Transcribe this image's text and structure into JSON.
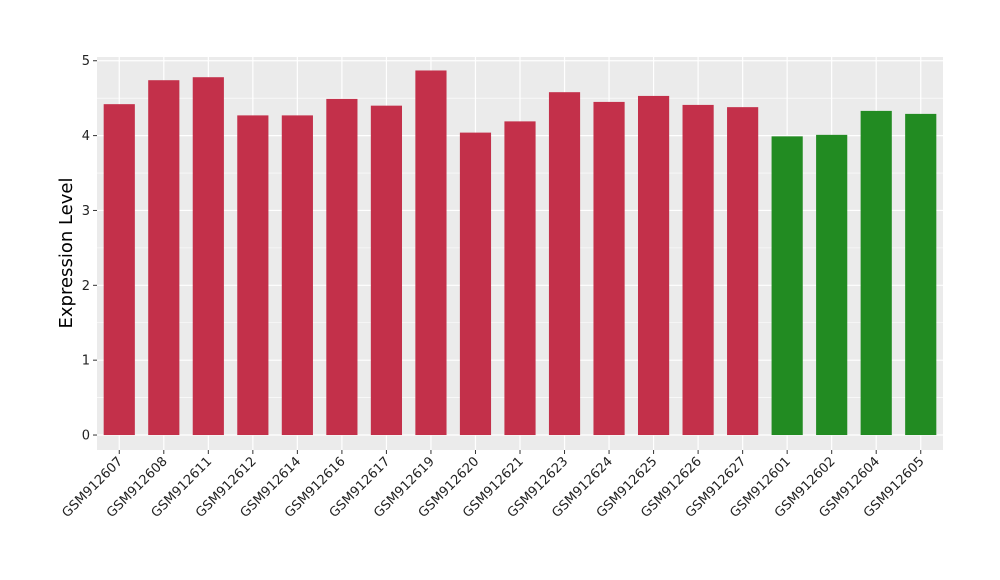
{
  "chart_data": {
    "type": "bar",
    "title": "",
    "xlabel": "",
    "ylabel": "Expression Level",
    "ylim": [
      -0.2,
      5.05
    ],
    "yticks": [
      0,
      1,
      2,
      3,
      4,
      5
    ],
    "grid": true,
    "legend": "none",
    "categories": [
      "GSM912607",
      "GSM912608",
      "GSM912611",
      "GSM912612",
      "GSM912614",
      "GSM912616",
      "GSM912617",
      "GSM912619",
      "GSM912620",
      "GSM912621",
      "GSM912623",
      "GSM912624",
      "GSM912625",
      "GSM912626",
      "GSM912627",
      "GSM912601",
      "GSM912602",
      "GSM912604",
      "GSM912605"
    ],
    "values": [
      4.42,
      4.74,
      4.78,
      4.27,
      4.27,
      4.49,
      4.4,
      4.87,
      4.04,
      4.19,
      4.58,
      4.45,
      4.53,
      4.41,
      4.38,
      3.99,
      4.01,
      4.33,
      4.29
    ],
    "bar_colors": [
      "#c3304a",
      "#c3304a",
      "#c3304a",
      "#c3304a",
      "#c3304a",
      "#c3304a",
      "#c3304a",
      "#c3304a",
      "#c3304a",
      "#c3304a",
      "#c3304a",
      "#c3304a",
      "#c3304a",
      "#c3304a",
      "#c3304a",
      "#228b22",
      "#228b22",
      "#228b22",
      "#228b22"
    ],
    "panel_background": "#ebebeb",
    "gridline_color": "#ffffff"
  }
}
